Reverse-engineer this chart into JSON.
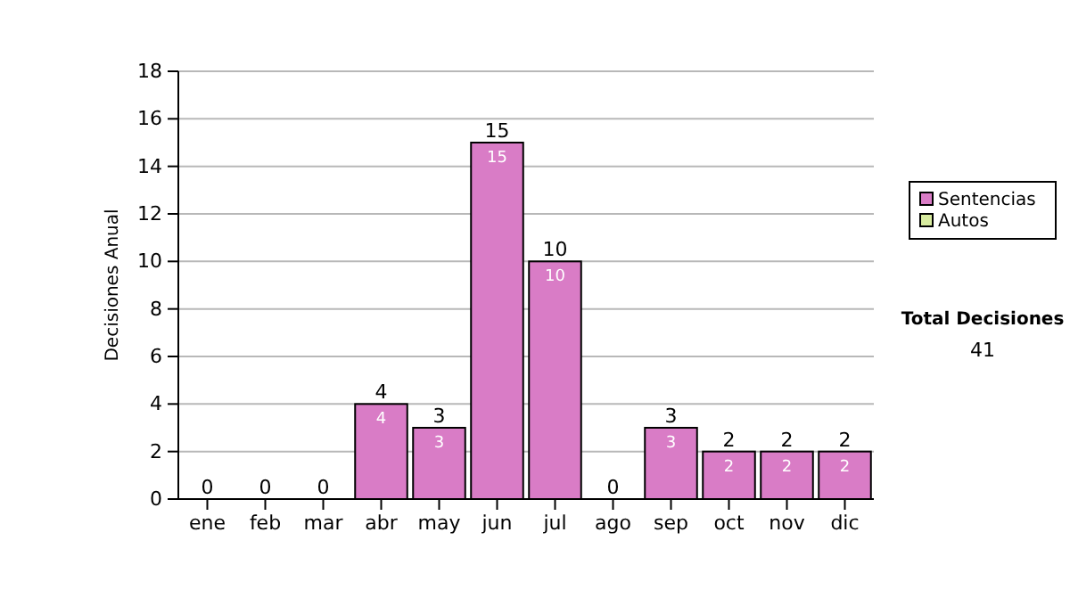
{
  "chart_data": {
    "type": "bar",
    "stacked": true,
    "ylabel": "Decisiones Anual",
    "categories": [
      "ene",
      "feb",
      "mar",
      "abr",
      "may",
      "jun",
      "jul",
      "ago",
      "sep",
      "oct",
      "nov",
      "dic"
    ],
    "series": [
      {
        "name": "Sentencias",
        "color": "#d97cc6",
        "values": [
          0,
          0,
          0,
          4,
          3,
          15,
          10,
          0,
          3,
          2,
          2,
          2
        ],
        "value_labels": [
          null,
          null,
          null,
          "4",
          "3",
          "15",
          "10",
          null,
          "3",
          "2",
          "2",
          "2"
        ]
      },
      {
        "name": "Autos",
        "color": "#d8eca0",
        "values": [
          0,
          0,
          0,
          0,
          0,
          0,
          0,
          0,
          0,
          0,
          0,
          0
        ]
      }
    ],
    "totals": [
      "0",
      "0",
      "0",
      "4",
      "3",
      "15",
      "10",
      "0",
      "3",
      "2",
      "2",
      "2"
    ],
    "ylim": [
      0,
      18
    ],
    "yticks": [
      0,
      2,
      4,
      6,
      8,
      10,
      12,
      14,
      16,
      18
    ],
    "grid": "y",
    "legend": "right",
    "annotations": [
      "Total Decisiones",
      "41"
    ]
  }
}
